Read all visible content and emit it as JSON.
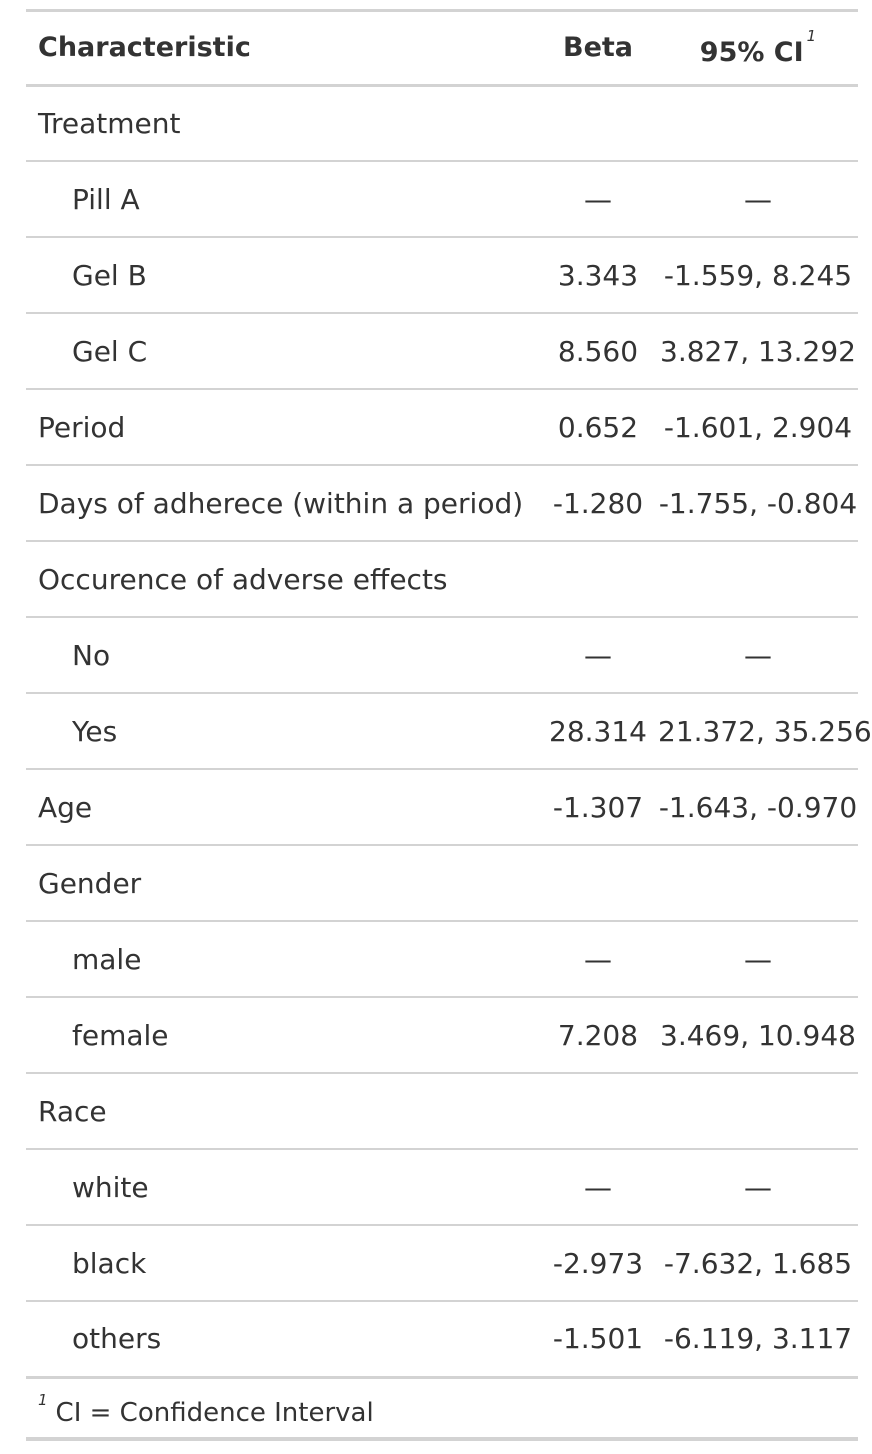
{
  "header": {
    "characteristic": "Characteristic",
    "beta": "Beta",
    "ci": "95% CI",
    "ci_footnote_mark": "1"
  },
  "rows": [
    {
      "label": "Treatment",
      "beta": "",
      "ci": "",
      "indent": false
    },
    {
      "label": "Pill A",
      "beta": "—",
      "ci": "—",
      "indent": true
    },
    {
      "label": "Gel B",
      "beta": "3.343",
      "ci": "-1.559, 8.245",
      "indent": true
    },
    {
      "label": "Gel C",
      "beta": "8.560",
      "ci": "3.827, 13.292",
      "indent": true
    },
    {
      "label": "Period",
      "beta": "0.652",
      "ci": "-1.601, 2.904",
      "indent": false
    },
    {
      "label": "Days of adherece (within a period)",
      "beta": "-1.280",
      "ci": "-1.755, -0.804",
      "indent": false
    },
    {
      "label": "Occurence of adverse effects",
      "beta": "",
      "ci": "",
      "indent": false
    },
    {
      "label": "No",
      "beta": "—",
      "ci": "—",
      "indent": true
    },
    {
      "label": "Yes",
      "beta": "28.314",
      "ci": "21.372, 35.256",
      "indent": true
    },
    {
      "label": "Age",
      "beta": "-1.307",
      "ci": "-1.643, -0.970",
      "indent": false
    },
    {
      "label": "Gender",
      "beta": "",
      "ci": "",
      "indent": false
    },
    {
      "label": "male",
      "beta": "—",
      "ci": "—",
      "indent": true
    },
    {
      "label": "female",
      "beta": "7.208",
      "ci": "3.469, 10.948",
      "indent": true
    },
    {
      "label": "Race",
      "beta": "",
      "ci": "",
      "indent": false
    },
    {
      "label": "white",
      "beta": "—",
      "ci": "—",
      "indent": true
    },
    {
      "label": "black",
      "beta": "-2.973",
      "ci": "-7.632, 1.685",
      "indent": true
    },
    {
      "label": "others",
      "beta": "-1.501",
      "ci": "-6.119, 3.117",
      "indent": true
    }
  ],
  "footnote": {
    "mark": "1",
    "text": "CI = Confidence Interval"
  }
}
